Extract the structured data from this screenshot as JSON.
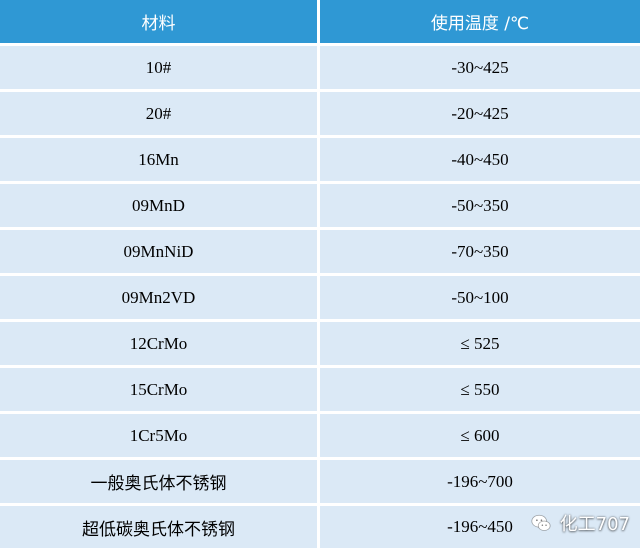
{
  "header": {
    "material": "材料",
    "temperature": "使用温度 /℃"
  },
  "rows": [
    {
      "material": "10#",
      "temperature": "-30~425"
    },
    {
      "material": "20#",
      "temperature": "-20~425"
    },
    {
      "material": "16Mn",
      "temperature": "-40~450"
    },
    {
      "material": "09MnD",
      "temperature": "-50~350"
    },
    {
      "material": "09MnNiD",
      "temperature": "-70~350"
    },
    {
      "material": "09Mn2VD",
      "temperature": "-50~100"
    },
    {
      "material": "12CrMo",
      "temperature": "≤ 525"
    },
    {
      "material": "15CrMo",
      "temperature": "≤ 550"
    },
    {
      "material": "1Cr5Mo",
      "temperature": "≤ 600"
    },
    {
      "material": "一般奥氏体不锈钢",
      "temperature": "-196~700"
    },
    {
      "material": "超低碳奥氏体不锈钢",
      "temperature": "-196~450"
    }
  ],
  "watermark": {
    "text": "化工707",
    "icon": "wechat-icon"
  },
  "colors": {
    "header_bg": "#2f98d4",
    "cell_bg": "#dbe9f6"
  }
}
